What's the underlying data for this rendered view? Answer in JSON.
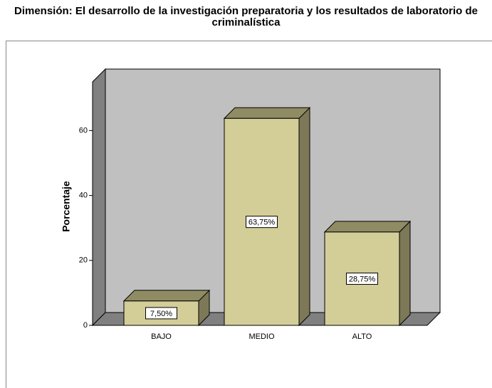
{
  "chart_data": {
    "type": "bar3d",
    "title": "Dimensión: El desarrollo de la investigación preparatoria y los resultados de laboratorio de criminalística",
    "y_label": "Porcentaje",
    "categories": [
      "BAJO",
      "MEDIO",
      "ALTO"
    ],
    "values": [
      7.5,
      63.75,
      28.75
    ],
    "value_labels": [
      "7,50%",
      "63,75%",
      "28,75%"
    ],
    "color": "#d3cd98",
    "ylim": [
      0,
      75
    ],
    "yticks": [
      0,
      20,
      40,
      60
    ]
  }
}
